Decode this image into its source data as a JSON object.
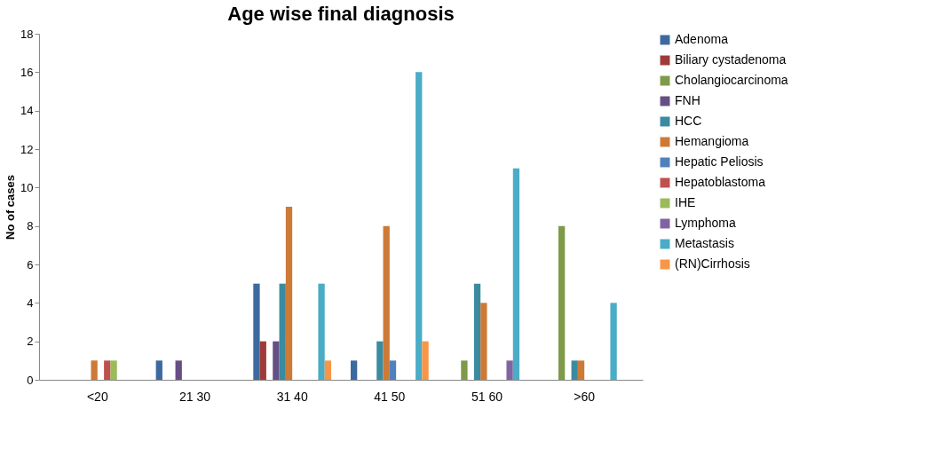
{
  "chart_data": {
    "type": "bar",
    "title": "Age wise final diagnosis",
    "ylabel": "No of cases",
    "categories": [
      "<20",
      "21 30",
      "31 40",
      "41 50",
      "51 60",
      ">60"
    ],
    "series": [
      {
        "name": "Adenoma",
        "color": "#3d6a9e",
        "values": [
          0,
          1,
          5,
          1,
          0,
          0
        ]
      },
      {
        "name": "Biliary cystadenoma",
        "color": "#9e3b38",
        "values": [
          0,
          0,
          2,
          0,
          0,
          0
        ]
      },
      {
        "name": "Cholangiocarcinoma",
        "color": "#7f9a48",
        "values": [
          0,
          0,
          0,
          0,
          1,
          8
        ]
      },
      {
        "name": "FNH",
        "color": "#664f85",
        "values": [
          0,
          1,
          2,
          0,
          0,
          0
        ]
      },
      {
        "name": "HCC",
        "color": "#3a8ba0",
        "values": [
          0,
          0,
          5,
          2,
          5,
          1
        ]
      },
      {
        "name": "Hemangioma",
        "color": "#cd7a37",
        "values": [
          1,
          0,
          9,
          8,
          4,
          1
        ]
      },
      {
        "name": "Hepatic Peliosis",
        "color": "#4f81bd",
        "values": [
          0,
          0,
          0,
          1,
          0,
          0
        ]
      },
      {
        "name": "Hepatoblastoma",
        "color": "#c0504d",
        "values": [
          1,
          0,
          0,
          0,
          0,
          0
        ]
      },
      {
        "name": "IHE",
        "color": "#9bbb59",
        "values": [
          1,
          0,
          0,
          0,
          0,
          0
        ]
      },
      {
        "name": "Lymphoma",
        "color": "#8064a2",
        "values": [
          0,
          0,
          0,
          0,
          1,
          0
        ]
      },
      {
        "name": "Metastasis",
        "color": "#4bacc6",
        "values": [
          0,
          0,
          5,
          16,
          11,
          4
        ]
      },
      {
        "name": "(RN)Cirrhosis",
        "color": "#f79646",
        "values": [
          0,
          0,
          1,
          2,
          0,
          0
        ]
      }
    ],
    "ylim": [
      0,
      18
    ],
    "yticks": [
      0,
      2,
      4,
      6,
      8,
      10,
      12,
      14,
      16,
      18
    ],
    "grid": false,
    "legend": "right"
  }
}
